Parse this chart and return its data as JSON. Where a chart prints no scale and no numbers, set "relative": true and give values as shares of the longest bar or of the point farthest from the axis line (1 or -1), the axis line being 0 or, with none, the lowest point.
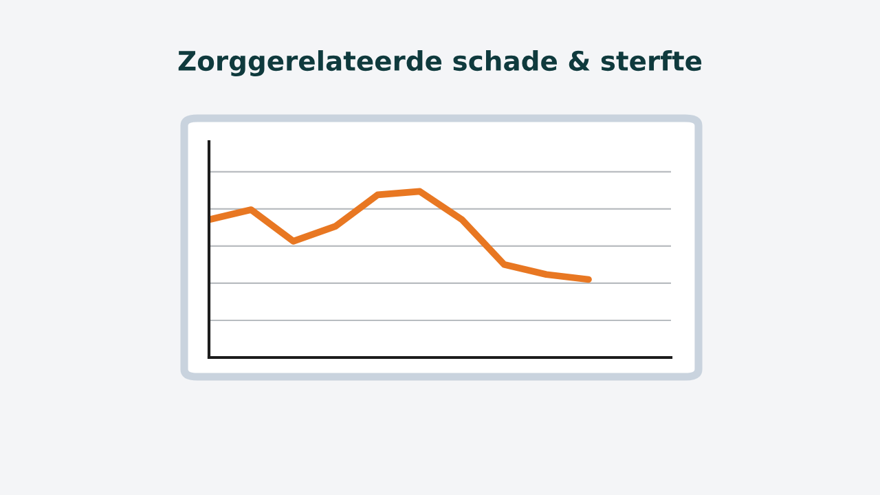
{
  "chart_data": {
    "type": "line",
    "title": "Zorggerelateerde schade & sterfte",
    "relative": true,
    "categories": [
      null,
      null,
      null,
      null,
      null,
      null,
      null,
      null,
      null,
      null
    ],
    "series": [
      {
        "color": "#e87722",
        "values": [
          0.83,
          0.89,
          0.7,
          0.79,
          0.98,
          1.0,
          0.83,
          0.56,
          0.5,
          0.47
        ]
      }
    ],
    "grid": "y",
    "legend": false
  }
}
